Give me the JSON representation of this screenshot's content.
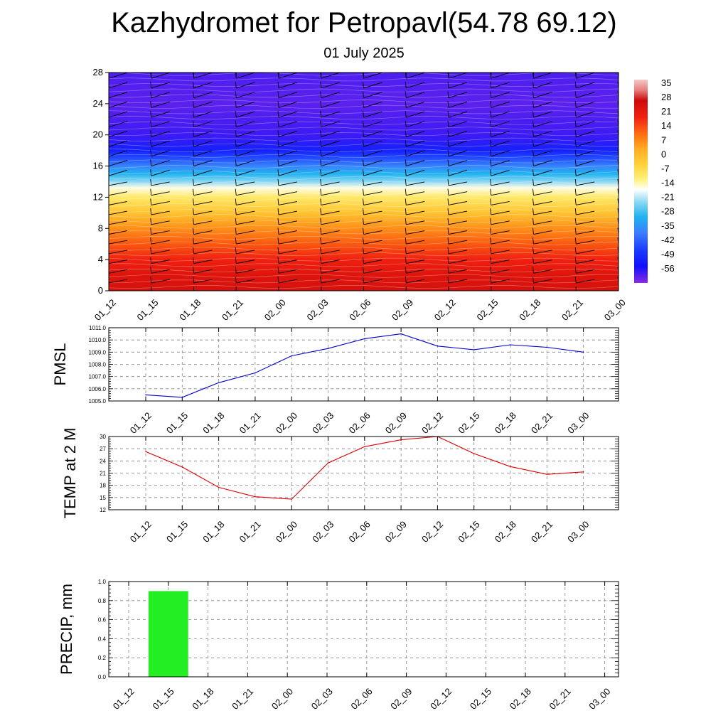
{
  "header": {
    "title": "Kazhydromet for Petropavl(54.78 69.12)",
    "date": "01 July 2025"
  },
  "colors": {
    "pmsl_line": "#0000cc",
    "temp_line": "#dd0000",
    "precip_bar": "#22ee22",
    "grid": "#888888"
  },
  "chart_data": [
    {
      "type": "heatmap",
      "title": "",
      "x": [
        "01_12",
        "01_15",
        "01_18",
        "01_21",
        "02_00",
        "02_03",
        "02_06",
        "02_09",
        "02_12",
        "02_15",
        "02_18",
        "02_21",
        "03_00"
      ],
      "y_ticks": [
        0,
        4,
        8,
        12,
        16,
        20,
        24,
        28
      ],
      "ylim": [
        0,
        28
      ],
      "colorbar": {
        "labels": [
          35,
          28,
          21,
          14,
          7,
          0,
          -7,
          -14,
          -21,
          -28,
          -35,
          -42,
          -49,
          -56
        ],
        "range": [
          -60,
          38
        ],
        "stops": [
          {
            "v": -60,
            "c": "#8a2be2"
          },
          {
            "v": -52,
            "c": "#1010ff"
          },
          {
            "v": -44,
            "c": "#1a3cff"
          },
          {
            "v": -36,
            "c": "#3a7cff"
          },
          {
            "v": -28,
            "c": "#20b4f0"
          },
          {
            "v": -21,
            "c": "#8cd8f4"
          },
          {
            "v": -15,
            "c": "#ffffff"
          },
          {
            "v": -10,
            "c": "#fff27a"
          },
          {
            "v": -3,
            "c": "#ffd23a"
          },
          {
            "v": 5,
            "c": "#ffaa20"
          },
          {
            "v": 12,
            "c": "#ff6a10"
          },
          {
            "v": 20,
            "c": "#f02010"
          },
          {
            "v": 28,
            "c": "#cc0a0a"
          },
          {
            "v": 33,
            "c": "#e88080"
          },
          {
            "v": 38,
            "c": "#f4c8c8"
          }
        ]
      },
      "temperature_profile": [
        {
          "h": 0,
          "t": 26
        },
        {
          "h": 2,
          "t": 24
        },
        {
          "h": 4,
          "t": 20
        },
        {
          "h": 6,
          "t": 14
        },
        {
          "h": 8,
          "t": 8
        },
        {
          "h": 10,
          "t": 0
        },
        {
          "h": 12,
          "t": -8
        },
        {
          "h": 13.2,
          "t": -14
        },
        {
          "h": 14,
          "t": -21
        },
        {
          "h": 15,
          "t": -28
        },
        {
          "h": 16,
          "t": -35
        },
        {
          "h": 17,
          "t": -42
        },
        {
          "h": 18,
          "t": -49
        },
        {
          "h": 20,
          "t": -55
        },
        {
          "h": 24,
          "t": -57
        },
        {
          "h": 28,
          "t": -56
        }
      ]
    },
    {
      "type": "line",
      "ylabel": "PMSL",
      "categories": [
        "01_12",
        "01_15",
        "01_18",
        "01_21",
        "02_00",
        "02_03",
        "02_06",
        "02_09",
        "02_12",
        "02_15",
        "02_18",
        "02_21",
        "03_00"
      ],
      "values": [
        1005.5,
        1005.3,
        1006.5,
        1007.3,
        1008.7,
        1009.3,
        1010.1,
        1010.5,
        1009.5,
        1009.2,
        1009.6,
        1009.4,
        1009.0
      ],
      "ylim": [
        1005.0,
        1011.0
      ],
      "y_ticks": [
        "1005.0",
        "1006.0",
        "1007.0",
        "1008.0",
        "1009.0",
        "1010.0",
        "1011.0"
      ],
      "grid": true
    },
    {
      "type": "line",
      "ylabel": "TEMP at 2 M",
      "categories": [
        "01_12",
        "01_15",
        "01_18",
        "01_21",
        "02_00",
        "02_03",
        "02_06",
        "02_09",
        "02_12",
        "02_15",
        "02_18",
        "02_21",
        "03_00"
      ],
      "values": [
        26.3,
        22.5,
        17.5,
        15.2,
        14.6,
        23.5,
        27.5,
        29.2,
        30.0,
        25.8,
        22.6,
        20.7,
        21.3
      ],
      "ylim": [
        12,
        30
      ],
      "y_ticks": [
        "12",
        "15",
        "18",
        "21",
        "24",
        "27",
        "30"
      ],
      "grid": true
    },
    {
      "type": "bar",
      "ylabel": "PRECIP, mm",
      "categories": [
        "01_12",
        "01_15",
        "01_18",
        "01_21",
        "02_00",
        "02_03",
        "02_06",
        "02_09",
        "02_12",
        "02_15",
        "02_18",
        "02_21",
        "03_00"
      ],
      "values": [
        0,
        0.9,
        0,
        0,
        0,
        0,
        0,
        0,
        0,
        0,
        0,
        0,
        0
      ],
      "ylim": [
        0,
        1.0
      ],
      "y_ticks": [
        "0.0",
        "0.2",
        "0.4",
        "0.6",
        "0.8",
        "1.0"
      ],
      "grid": true
    }
  ]
}
